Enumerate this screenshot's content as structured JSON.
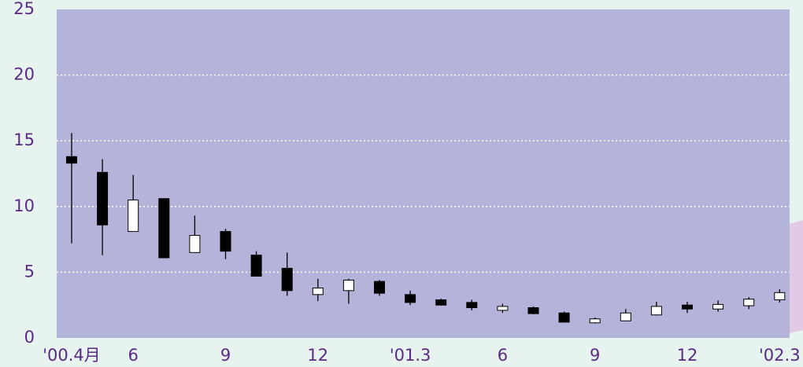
{
  "chart_data": {
    "type": "candlestick",
    "categories": [
      "'00.4月",
      null,
      "6",
      null,
      null,
      "9",
      null,
      null,
      "12",
      null,
      null,
      "'01.3",
      null,
      null,
      "6",
      null,
      null,
      "9",
      null,
      null,
      "12",
      null,
      null,
      "'02.3"
    ],
    "open": [
      13.8,
      12.6,
      8.1,
      10.6,
      6.5,
      8.1,
      6.3,
      5.3,
      3.3,
      3.6,
      4.3,
      3.3,
      2.9,
      2.7,
      2.1,
      2.3,
      1.9,
      1.15,
      1.3,
      1.75,
      2.5,
      2.2,
      2.45,
      2.9
    ],
    "high": [
      15.6,
      13.6,
      12.4,
      10.6,
      9.3,
      8.3,
      6.6,
      6.5,
      4.5,
      4.5,
      4.4,
      3.6,
      3.0,
      2.9,
      2.6,
      2.4,
      2.0,
      1.55,
      2.2,
      2.75,
      2.75,
      2.85,
      3.1,
      3.7
    ],
    "low": [
      7.2,
      6.3,
      8.1,
      6.1,
      6.5,
      6.0,
      4.7,
      3.2,
      2.8,
      2.6,
      3.2,
      2.5,
      2.5,
      2.1,
      1.9,
      1.8,
      1.2,
      1.1,
      1.3,
      1.7,
      1.9,
      2.0,
      2.2,
      2.7
    ],
    "close": [
      13.3,
      8.6,
      10.5,
      6.1,
      7.8,
      6.6,
      4.7,
      3.6,
      3.8,
      4.4,
      3.4,
      2.7,
      2.5,
      2.3,
      2.4,
      1.85,
      1.2,
      1.45,
      1.9,
      2.4,
      2.2,
      2.55,
      2.95,
      3.45
    ],
    "up_color": "#ffffff",
    "down_color": "#000000",
    "ylim": [
      0,
      25
    ],
    "yticks": [
      0,
      5,
      10,
      15,
      20,
      25
    ],
    "grid": true
  }
}
